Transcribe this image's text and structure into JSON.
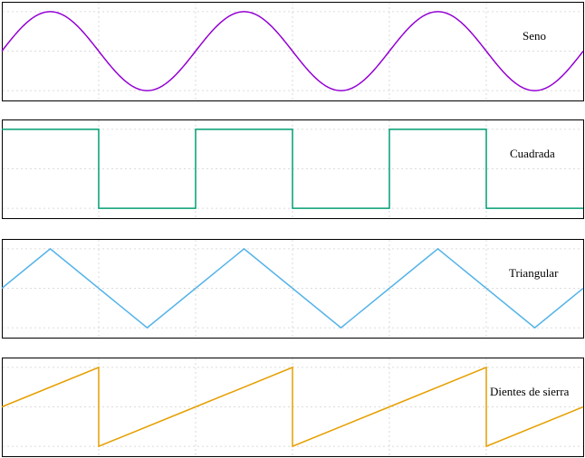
{
  "chart_data": [
    {
      "type": "line",
      "series": [
        {
          "name": "Seno",
          "function": "sine",
          "color": "#9400d3",
          "cycles": 3,
          "phase_deg": 0
        }
      ],
      "xlim": [
        0,
        3
      ],
      "ylim": [
        -1.25,
        1.25
      ],
      "yticks": [
        -1,
        0,
        1
      ],
      "xticks": [
        0,
        0.5,
        1,
        1.5,
        2,
        2.5,
        3
      ],
      "grid": true
    },
    {
      "type": "line",
      "series": [
        {
          "name": "Cuadrada",
          "function": "square",
          "color": "#009e73",
          "cycles": 3,
          "phase_deg": 0
        }
      ],
      "xlim": [
        0,
        3
      ],
      "ylim": [
        -1.25,
        1.25
      ],
      "yticks": [
        -1,
        0,
        1
      ],
      "xticks": [
        0,
        0.5,
        1,
        1.5,
        2,
        2.5,
        3
      ],
      "grid": true
    },
    {
      "type": "line",
      "series": [
        {
          "name": "Triangular",
          "function": "triangle",
          "color": "#56b4e9",
          "cycles": 3,
          "phase_deg": 0
        }
      ],
      "xlim": [
        0,
        3
      ],
      "ylim": [
        -1.25,
        1.25
      ],
      "yticks": [
        -1,
        0,
        1
      ],
      "xticks": [
        0,
        0.5,
        1,
        1.5,
        2,
        2.5,
        3
      ],
      "grid": true
    },
    {
      "type": "line",
      "series": [
        {
          "name": "Dientes de sierra",
          "function": "sawtooth",
          "color": "#e69f00",
          "cycles": 3,
          "phase_deg": 0
        }
      ],
      "xlim": [
        0,
        3
      ],
      "ylim": [
        -1.25,
        1.25
      ],
      "yticks": [
        -1,
        0,
        1
      ],
      "xticks": [
        0,
        0.5,
        1,
        1.5,
        2,
        2.5,
        3
      ],
      "grid": true
    }
  ]
}
